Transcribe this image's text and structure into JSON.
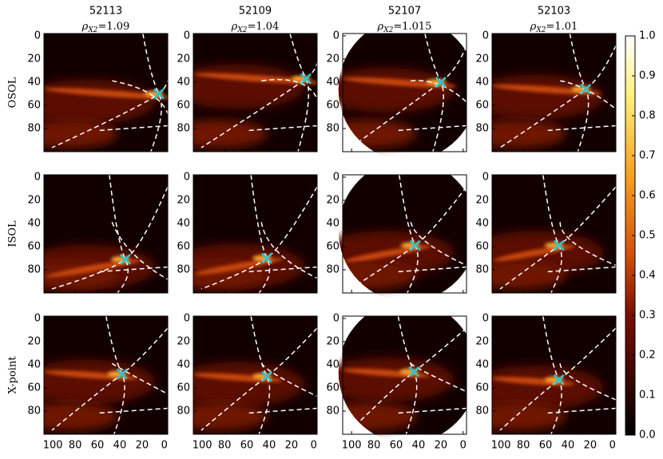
{
  "chart_data": {
    "type": "heatmap",
    "columns": [
      {
        "title": "52113",
        "rho": 1.09
      },
      {
        "title": "52109",
        "rho": 1.04
      },
      {
        "title": "52107",
        "rho": 1.015
      },
      {
        "title": "52103",
        "rho": 1.01
      }
    ],
    "rho_symbol": "ρ",
    "rho_subscript": "X2",
    "rho_equals": "=",
    "rows": [
      "OSOL",
      "ISOL",
      "X-point"
    ],
    "xlim": [
      108,
      -3
    ],
    "ylim": [
      -2,
      100
    ],
    "xticks": [
      100,
      80,
      60,
      40,
      20,
      0
    ],
    "yticks": [
      0,
      20,
      40,
      60,
      80
    ],
    "xpoints": {
      "x": [
        [
          5,
          7,
          20,
          24
        ],
        [
          35,
          42,
          43,
          48
        ],
        [
          38,
          42,
          44,
          48
        ]
      ],
      "y": [
        [
          50,
          37,
          40,
          46
        ],
        [
          71,
          70,
          59,
          59
        ],
        [
          48,
          50,
          46,
          53
        ]
      ]
    },
    "colorbar": {
      "lim": [
        0,
        1
      ],
      "ticks": [
        {
          "value": 0,
          "label": "0.0"
        },
        {
          "value": 0.1,
          "label": "0.1"
        },
        {
          "value": 0.2,
          "label": "0.2"
        },
        {
          "value": 0.3,
          "label": "0.3"
        },
        {
          "value": 0.4,
          "label": "0.4"
        },
        {
          "value": 0.5,
          "label": "0.5"
        },
        {
          "value": 0.6,
          "label": "0.6"
        },
        {
          "value": 0.7,
          "label": "0.7"
        },
        {
          "value": 0.8,
          "label": "0.8"
        },
        {
          "value": 0.9,
          "label": "0.9"
        },
        {
          "value": 1,
          "label": "1.0"
        }
      ]
    }
  }
}
